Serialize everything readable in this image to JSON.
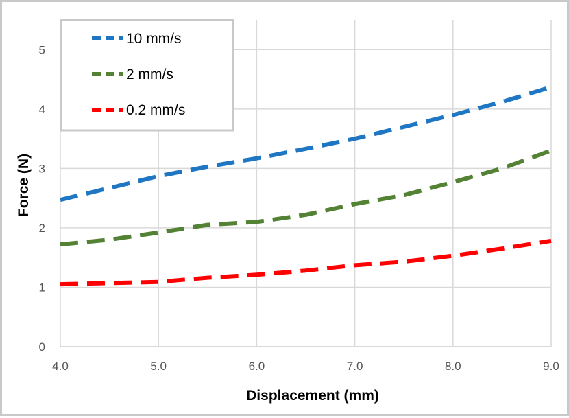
{
  "chart_data": {
    "type": "line",
    "xlabel": "Displacement (mm)",
    "ylabel": "Force (N)",
    "xlim": [
      4.0,
      9.0
    ],
    "ylim": [
      0,
      5.5
    ],
    "x_ticks": [
      4.0,
      5.0,
      6.0,
      7.0,
      8.0,
      9.0
    ],
    "x_tick_labels": [
      "4.0",
      "5.0",
      "6.0",
      "7.0",
      "8.0",
      "9.0"
    ],
    "y_ticks": [
      0,
      1,
      2,
      3,
      4,
      5
    ],
    "y_tick_labels": [
      "0",
      "1",
      "2",
      "3",
      "4",
      "5"
    ],
    "grid": true,
    "legend_position": "top-left",
    "line_style": "dashed",
    "series": [
      {
        "name": "10 mm/s",
        "color": "#1f77c4",
        "x": [
          4.0,
          4.5,
          5.0,
          5.5,
          6.0,
          6.5,
          7.0,
          7.5,
          8.0,
          8.5,
          9.0
        ],
        "y": [
          2.47,
          2.67,
          2.87,
          3.03,
          3.17,
          3.33,
          3.5,
          3.7,
          3.9,
          4.12,
          4.37
        ]
      },
      {
        "name": "2 mm/s",
        "color": "#548235",
        "x": [
          4.0,
          4.5,
          5.0,
          5.5,
          6.0,
          6.5,
          7.0,
          7.5,
          8.0,
          8.5,
          9.0
        ],
        "y": [
          1.72,
          1.8,
          1.92,
          2.05,
          2.1,
          2.22,
          2.4,
          2.55,
          2.77,
          3.0,
          3.3
        ]
      },
      {
        "name": "0.2 mm/s",
        "color": "#ff0000",
        "x": [
          4.0,
          4.5,
          5.0,
          5.5,
          6.0,
          6.5,
          7.0,
          7.5,
          8.0,
          8.5,
          9.0
        ],
        "y": [
          1.05,
          1.07,
          1.09,
          1.16,
          1.21,
          1.28,
          1.37,
          1.43,
          1.53,
          1.65,
          1.78
        ]
      }
    ]
  }
}
